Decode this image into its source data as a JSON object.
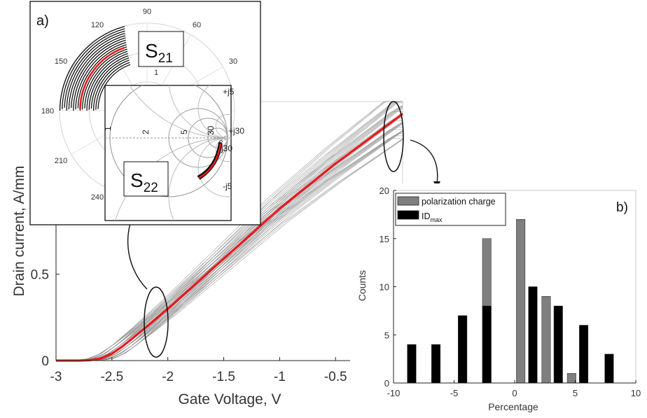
{
  "chart_data": [
    {
      "panel": "main",
      "type": "line",
      "xlabel": "Gate Voltage, V",
      "ylabel": "Drain current, A/mm",
      "xlim": [
        -3,
        0.1
      ],
      "ylim": [
        0,
        1.5
      ],
      "x_ticks": [
        "-3",
        "-2.5",
        "-2",
        "-1.5",
        "-1",
        "-0.5"
      ],
      "y_ticks": [
        "0",
        "0.5"
      ],
      "grid": false,
      "series": [
        {
          "role": "nominal",
          "color": "#e8191c",
          "x": [
            -3,
            -2.8,
            -2.7,
            -2.6,
            -2.5,
            -2.4,
            -2.2,
            -2.0,
            -1.5,
            -1.0,
            -0.5,
            0.0,
            0.1
          ],
          "y": [
            0,
            0,
            0.002,
            0.012,
            0.04,
            0.085,
            0.19,
            0.3,
            0.59,
            0.88,
            1.14,
            1.38,
            1.43
          ]
        },
        {
          "role": "monte-carlo-spread",
          "color": "#8a8a8a",
          "count": 40,
          "x_shift_range": [
            -0.12,
            0.12
          ],
          "gain_range": [
            0.9,
            1.1
          ]
        }
      ]
    },
    {
      "panel": "a",
      "label": "a)",
      "type": "smith-polar",
      "angle_ticks": [
        "90",
        "60",
        "30",
        "120",
        "150",
        "180",
        "210",
        "240"
      ],
      "s21_label": {
        "main": "S",
        "sub": "21"
      },
      "s22_label": {
        "main": "S",
        "sub": "22"
      },
      "inner_ticks": [
        "1",
        "2",
        "5",
        "30",
        "∞",
        "+j5",
        "+j30",
        "-j30",
        "-j5"
      ],
      "radial_tick": "1"
    },
    {
      "panel": "b",
      "label": "b)",
      "type": "bar",
      "xlabel": "Percentage",
      "ylabel": "Counts",
      "xlim": [
        -10,
        10
      ],
      "ylim": [
        0,
        20
      ],
      "x_ticks": [
        "-10",
        "-5",
        "0",
        "5",
        "10"
      ],
      "y_ticks": [
        "0",
        "5",
        "10",
        "15",
        "20"
      ],
      "legend_position": "top-left",
      "series": [
        {
          "name": "polarization charge",
          "color": "#7f7f7f",
          "x": [
            -8.5,
            -6.5,
            -4.3,
            -2.3,
            -0.7,
            0.5,
            2.6,
            4.7,
            6.8
          ],
          "values": [
            0,
            1,
            7,
            15,
            0,
            17,
            9,
            1,
            0
          ]
        },
        {
          "name_main": "ID",
          "name_sub": "max",
          "color": "#000000",
          "x": [
            -8.5,
            -6.5,
            -4.3,
            -2.3,
            0.7,
            1.5,
            3.6,
            5.7,
            7.8
          ],
          "values": [
            4,
            4,
            7,
            8,
            0,
            10,
            8,
            6,
            3
          ]
        }
      ]
    }
  ]
}
